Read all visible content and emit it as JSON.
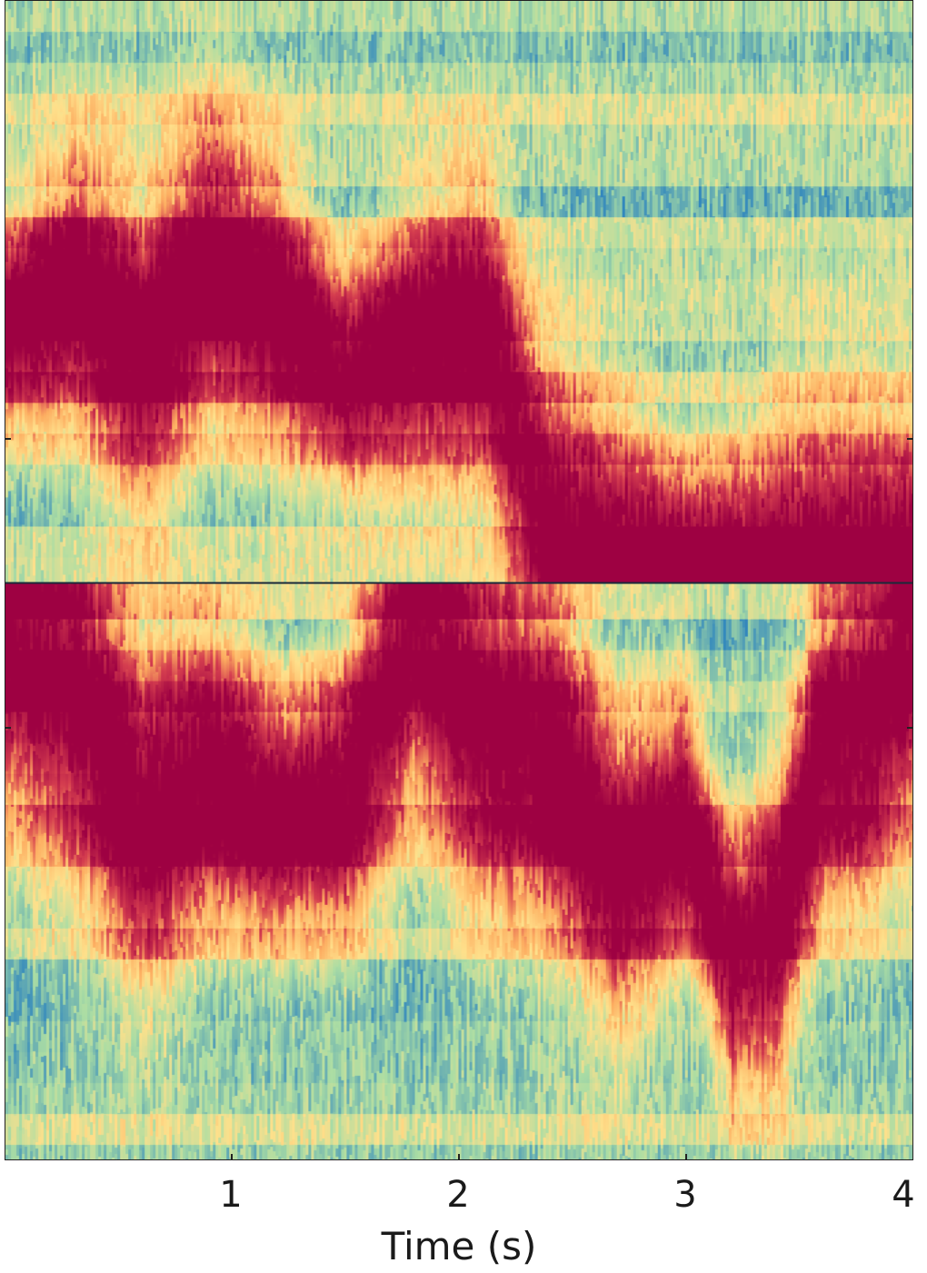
{
  "chart_data": {
    "type": "heatmap",
    "title": "",
    "xlabel": "Time (s)",
    "ylabel": "",
    "xlim": [
      0,
      4
    ],
    "x_ticks": [
      "1",
      "2",
      "3",
      "4"
    ],
    "x_tick_values": [
      1,
      2,
      3,
      4
    ],
    "y_ticks": [],
    "colormap": "Spectral_r",
    "colorbar": false,
    "grid": false,
    "colors": {
      "low": "#5e4fa2",
      "mid_low": "#3288bd",
      "mid": "#abdda4",
      "mid_high": "#fee08b",
      "high": "#d53e4f",
      "max": "#9e0142"
    },
    "ridges": {
      "description_values": "time (s) vs. relative frequency offset from center line (positive = above)",
      "upper_band": {
        "time": [
          0.0,
          0.3,
          0.6,
          0.9,
          1.2,
          1.5,
          1.8,
          2.1,
          2.4,
          2.7,
          3.0,
          3.3,
          3.6,
          4.0
        ],
        "offset": [
          0.22,
          0.25,
          0.19,
          0.27,
          0.23,
          0.17,
          0.2,
          0.21,
          0.05,
          0.03,
          0.02,
          0.01,
          0.02,
          0.02
        ]
      },
      "lower_band": {
        "time": [
          0.0,
          0.3,
          0.6,
          0.9,
          1.2,
          1.5,
          1.8,
          2.1,
          2.4,
          2.7,
          3.0,
          3.2,
          3.4,
          3.6,
          3.8,
          4.0
        ],
        "offset": [
          -0.05,
          -0.09,
          -0.2,
          -0.16,
          -0.2,
          -0.18,
          -0.04,
          -0.12,
          -0.15,
          -0.25,
          -0.21,
          -0.33,
          -0.3,
          -0.14,
          -0.12,
          -0.05
        ]
      }
    }
  }
}
